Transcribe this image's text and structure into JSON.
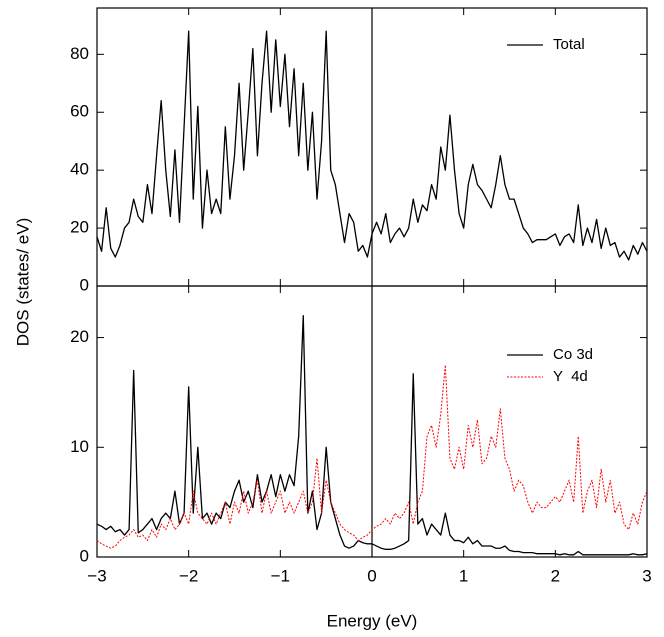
{
  "chart_data": [
    {
      "type": "line",
      "ylabel": "DOS (states/ eV)",
      "legend": "upper right",
      "vline": 0,
      "xlim": [
        -3,
        3
      ],
      "xticks": [
        -3,
        -2,
        -1,
        0,
        1,
        2,
        3
      ],
      "ylim": [
        0,
        96
      ],
      "yticks": [
        0,
        20,
        40,
        60,
        80
      ],
      "x": [
        -3,
        -2.95,
        -2.9,
        -2.85,
        -2.8,
        -2.75,
        -2.7,
        -2.65,
        -2.6,
        -2.55,
        -2.5,
        -2.45,
        -2.4,
        -2.35,
        -2.3,
        -2.25,
        -2.2,
        -2.15,
        -2.1,
        -2.05,
        -2,
        -1.95,
        -1.9,
        -1.85,
        -1.8,
        -1.75,
        -1.7,
        -1.65,
        -1.6,
        -1.55,
        -1.5,
        -1.45,
        -1.4,
        -1.35,
        -1.3,
        -1.25,
        -1.2,
        -1.15,
        -1.1,
        -1.05,
        -1,
        -0.95,
        -0.9,
        -0.85,
        -0.8,
        -0.75,
        -0.7,
        -0.65,
        -0.6,
        -0.55,
        -0.5,
        -0.45,
        -0.4,
        -0.35,
        -0.3,
        -0.25,
        -0.2,
        -0.15,
        -0.1,
        -0.05,
        0,
        0.05,
        0.1,
        0.15,
        0.2,
        0.25,
        0.3,
        0.35,
        0.4,
        0.45,
        0.5,
        0.55,
        0.6,
        0.65,
        0.7,
        0.75,
        0.8,
        0.85,
        0.9,
        0.95,
        1,
        1.05,
        1.1,
        1.15,
        1.2,
        1.25,
        1.3,
        1.35,
        1.4,
        1.45,
        1.5,
        1.55,
        1.6,
        1.65,
        1.7,
        1.75,
        1.8,
        1.85,
        1.9,
        1.95,
        2,
        2.05,
        2.1,
        2.15,
        2.2,
        2.25,
        2.3,
        2.35,
        2.4,
        2.45,
        2.5,
        2.55,
        2.6,
        2.65,
        2.7,
        2.75,
        2.8,
        2.85,
        2.9,
        2.95,
        3
      ],
      "series": [
        {
          "name": "Total",
          "color": "#000000",
          "linestyle": "solid",
          "values": [
            17,
            12,
            27,
            13,
            10,
            14,
            20,
            22,
            30,
            24,
            22,
            35,
            25,
            45,
            64,
            40,
            24,
            47,
            22,
            55,
            88,
            30,
            62,
            20,
            40,
            25,
            30,
            25,
            55,
            30,
            45,
            70,
            40,
            60,
            82,
            45,
            70,
            88,
            60,
            85,
            62,
            80,
            55,
            75,
            45,
            70,
            40,
            60,
            30,
            50,
            88,
            40,
            35,
            25,
            15,
            25,
            22,
            12,
            14,
            10,
            18,
            22,
            18,
            25,
            15,
            18,
            20,
            17,
            20,
            30,
            22,
            28,
            26,
            35,
            30,
            48,
            40,
            59,
            40,
            25,
            20,
            35,
            42,
            35,
            33,
            30,
            27,
            35,
            45,
            35,
            30,
            30,
            25,
            20,
            18,
            15,
            16,
            16,
            16,
            17,
            18,
            14,
            17,
            18,
            15,
            28,
            14,
            20,
            15,
            23,
            13,
            20,
            14,
            15,
            10,
            12,
            9,
            14,
            11,
            15,
            12
          ]
        }
      ]
    },
    {
      "type": "line",
      "xlabel": "Energy (eV)",
      "legend": "upper right",
      "vline": 0,
      "xlim": [
        -3,
        3
      ],
      "xticks": [
        {
          "value": -3,
          "label": "−3"
        },
        {
          "value": -2,
          "label": "−2"
        },
        {
          "value": -1,
          "label": "−1"
        },
        0,
        1,
        2,
        3
      ],
      "ylim": [
        0,
        24.7
      ],
      "yticks": [
        0,
        10,
        20
      ],
      "x": [
        -3,
        -2.95,
        -2.9,
        -2.85,
        -2.8,
        -2.75,
        -2.7,
        -2.65,
        -2.6,
        -2.55,
        -2.5,
        -2.45,
        -2.4,
        -2.35,
        -2.3,
        -2.25,
        -2.2,
        -2.15,
        -2.1,
        -2.05,
        -2,
        -1.95,
        -1.9,
        -1.85,
        -1.8,
        -1.75,
        -1.7,
        -1.65,
        -1.6,
        -1.55,
        -1.5,
        -1.45,
        -1.4,
        -1.35,
        -1.3,
        -1.25,
        -1.2,
        -1.15,
        -1.1,
        -1.05,
        -1,
        -0.95,
        -0.9,
        -0.85,
        -0.8,
        -0.75,
        -0.7,
        -0.65,
        -0.6,
        -0.55,
        -0.5,
        -0.45,
        -0.4,
        -0.35,
        -0.3,
        -0.25,
        -0.2,
        -0.15,
        -0.1,
        -0.05,
        0,
        0.05,
        0.1,
        0.15,
        0.2,
        0.25,
        0.3,
        0.35,
        0.4,
        0.45,
        0.5,
        0.55,
        0.6,
        0.65,
        0.7,
        0.75,
        0.8,
        0.85,
        0.9,
        0.95,
        1,
        1.05,
        1.1,
        1.15,
        1.2,
        1.25,
        1.3,
        1.35,
        1.4,
        1.45,
        1.5,
        1.55,
        1.6,
        1.65,
        1.7,
        1.75,
        1.8,
        1.85,
        1.9,
        1.95,
        2,
        2.05,
        2.1,
        2.15,
        2.2,
        2.25,
        2.3,
        2.35,
        2.4,
        2.45,
        2.5,
        2.55,
        2.6,
        2.65,
        2.7,
        2.75,
        2.8,
        2.85,
        2.9,
        2.95,
        3
      ],
      "series": [
        {
          "name": "Co 3d",
          "color": "#000000",
          "linestyle": "solid",
          "values": [
            3,
            2.8,
            2.5,
            2.8,
            2.3,
            2.5,
            2,
            2.5,
            17,
            2.2,
            2.5,
            3,
            3.5,
            2.5,
            3.5,
            4,
            3.5,
            6,
            3,
            4,
            15.5,
            4,
            10,
            3.5,
            4,
            3,
            4,
            3.5,
            5,
            4.5,
            6,
            7,
            5,
            6,
            4.5,
            7.5,
            5,
            6,
            7.5,
            5.5,
            7.5,
            6,
            7.5,
            6.5,
            11,
            22,
            4,
            6,
            2.5,
            4,
            10,
            5,
            3.5,
            2,
            1,
            0.8,
            1,
            1.5,
            1.3,
            1.2,
            1.2,
            1,
            0.8,
            0.7,
            0.7,
            0.8,
            1,
            1.2,
            1.5,
            16.7,
            3,
            3.5,
            2,
            3,
            2.5,
            2,
            4,
            2,
            1.5,
            1.5,
            1.3,
            1.8,
            1.2,
            1.5,
            1,
            1,
            1,
            0.8,
            0.8,
            1,
            0.6,
            0.5,
            0.5,
            0.4,
            0.4,
            0.4,
            0.3,
            0.3,
            0.3,
            0.3,
            0.3,
            0.2,
            0.3,
            0.2,
            0.2,
            0.5,
            0.2,
            0.2,
            0.2,
            0.2,
            0.2,
            0.2,
            0.2,
            0.2,
            0.2,
            0.2,
            0.2,
            0.3,
            0.2,
            0.2,
            0.3
          ]
        },
        {
          "name": "Y  4d",
          "color": "#ff0000",
          "linestyle": "dotted",
          "values": [
            1.5,
            1.2,
            1,
            0.8,
            1,
            1.5,
            1.8,
            2,
            2.5,
            1.8,
            2,
            1.5,
            2.5,
            1.8,
            3,
            2.5,
            3.5,
            2.5,
            3,
            4,
            3,
            6,
            4,
            3.5,
            3,
            4,
            3,
            4,
            5,
            3,
            5,
            4,
            6,
            4,
            5,
            7,
            4,
            6,
            4,
            5,
            6,
            4,
            5,
            4,
            5,
            6,
            4,
            5,
            9,
            4,
            7,
            5,
            4,
            3,
            2.5,
            2.2,
            2,
            1.5,
            1.8,
            2,
            2.5,
            2.8,
            3,
            3.5,
            3,
            4,
            3.5,
            4,
            5,
            3,
            5,
            6,
            11,
            12,
            10,
            13,
            17.5,
            9,
            8,
            10,
            8,
            12,
            10,
            12.5,
            8.5,
            9,
            11,
            10,
            13.5,
            9,
            8,
            6,
            7,
            6.5,
            5,
            4,
            5,
            4.5,
            4.5,
            5,
            5.5,
            5,
            6,
            7,
            5,
            11,
            4,
            6,
            7,
            4.5,
            8,
            5,
            7,
            4,
            5,
            3,
            2.5,
            4,
            3,
            5,
            6
          ]
        }
      ]
    }
  ]
}
